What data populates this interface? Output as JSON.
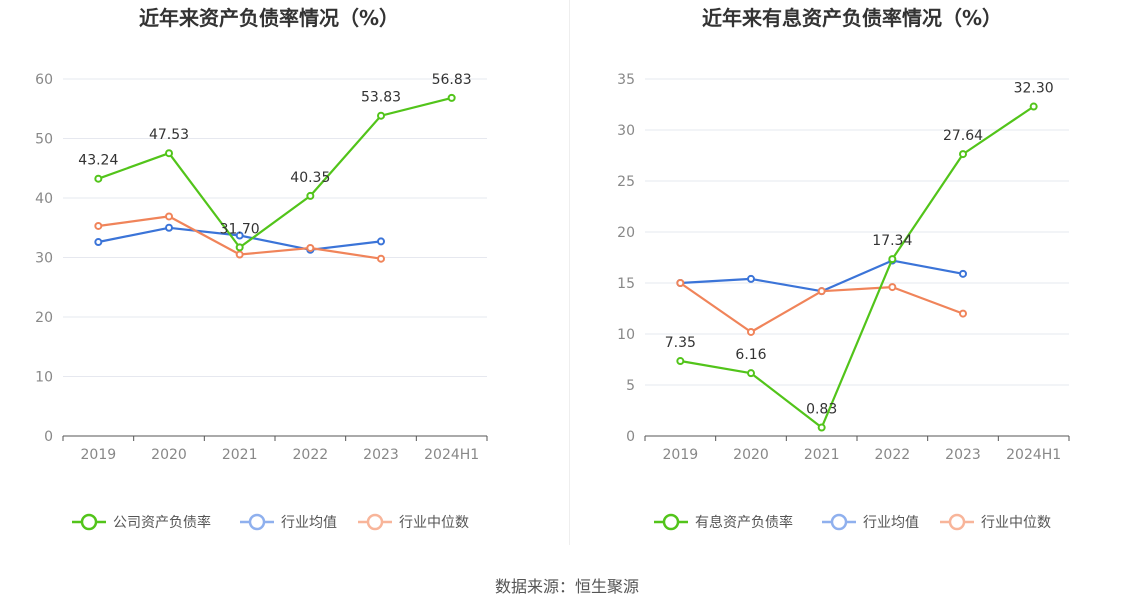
{
  "footer": {
    "source": "数据来源：恒生聚源"
  },
  "chart_data": [
    {
      "type": "line",
      "title": "近年来资产负债率情况（%）",
      "categories": [
        "2019",
        "2020",
        "2021",
        "2022",
        "2023",
        "2024H1"
      ],
      "ylim": [
        0,
        60
      ],
      "yticks": [
        0,
        10,
        20,
        30,
        40,
        50,
        60
      ],
      "grid": true,
      "legend_position": "bottom",
      "series": [
        {
          "name": "公司资产负债率",
          "color": "#52c41a",
          "values": [
            43.24,
            47.53,
            31.7,
            40.35,
            53.83,
            56.83
          ],
          "show_labels": true,
          "labels": [
            "43.24",
            "47.53",
            "31.70",
            "40.35",
            "53.83",
            "56.83"
          ]
        },
        {
          "name": "行业均值",
          "color": "#3b74d8",
          "legend_color": "#8fb0ee",
          "values": [
            32.6,
            35.0,
            33.7,
            31.3,
            32.7,
            null
          ],
          "show_labels": false
        },
        {
          "name": "行业中位数",
          "color": "#f0845a",
          "legend_color": "#f8b59a",
          "values": [
            35.3,
            36.9,
            30.5,
            31.6,
            29.8,
            null
          ],
          "show_labels": false
        }
      ]
    },
    {
      "type": "line",
      "title": "近年来有息资产负债率情况（%）",
      "categories": [
        "2019",
        "2020",
        "2021",
        "2022",
        "2023",
        "2024H1"
      ],
      "ylim": [
        0,
        35
      ],
      "yticks": [
        0,
        5,
        10,
        15,
        20,
        25,
        30,
        35
      ],
      "grid": true,
      "legend_position": "bottom",
      "series": [
        {
          "name": "有息资产负债率",
          "color": "#52c41a",
          "values": [
            7.35,
            6.16,
            0.83,
            17.34,
            27.64,
            32.3
          ],
          "show_labels": true,
          "labels": [
            "7.35",
            "6.16",
            "0.83",
            "17.34",
            "27.64",
            "32.30"
          ]
        },
        {
          "name": "行业均值",
          "color": "#3b74d8",
          "legend_color": "#8fb0ee",
          "values": [
            15.0,
            15.4,
            14.2,
            17.2,
            15.9,
            null
          ],
          "show_labels": false
        },
        {
          "name": "行业中位数",
          "color": "#f0845a",
          "legend_color": "#f8b59a",
          "values": [
            15.0,
            10.2,
            14.2,
            14.6,
            12.0,
            null
          ],
          "show_labels": false
        }
      ]
    }
  ]
}
